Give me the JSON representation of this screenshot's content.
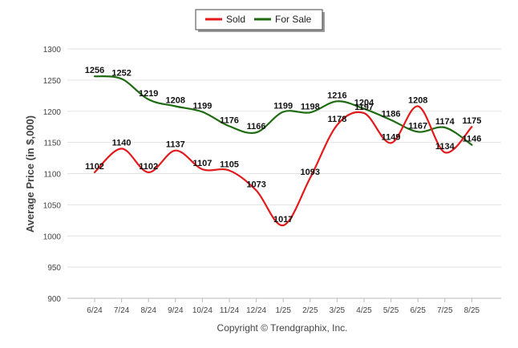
{
  "chart_data": {
    "type": "line",
    "categories": [
      "6/24",
      "7/24",
      "8/24",
      "9/24",
      "10/24",
      "11/24",
      "12/24",
      "1/25",
      "2/25",
      "3/25",
      "4/25",
      "5/25",
      "6/25",
      "7/25",
      "8/25"
    ],
    "series": [
      {
        "name": "Sold",
        "color": "#e31a1c",
        "values": [
          1102,
          1140,
          1102,
          1137,
          1107,
          1105,
          1073,
          1017,
          1093,
          1178,
          1197,
          1149,
          1208,
          1134,
          1175
        ]
      },
      {
        "name": "For Sale",
        "color": "#1e6b12",
        "values": [
          1256,
          1252,
          1219,
          1208,
          1199,
          1176,
          1166,
          1199,
          1198,
          1216,
          1204,
          1186,
          1167,
          1174,
          1146
        ]
      }
    ],
    "ylabel": "Average Price (in $,000)",
    "xlabel": "",
    "ylim": [
      900,
      1300
    ],
    "yticks": [
      900,
      950,
      1000,
      1050,
      1100,
      1150,
      1200,
      1250,
      1300
    ],
    "grid": true,
    "legend": "top-center"
  },
  "credit": "Copyright © Trendgraphix, Inc."
}
